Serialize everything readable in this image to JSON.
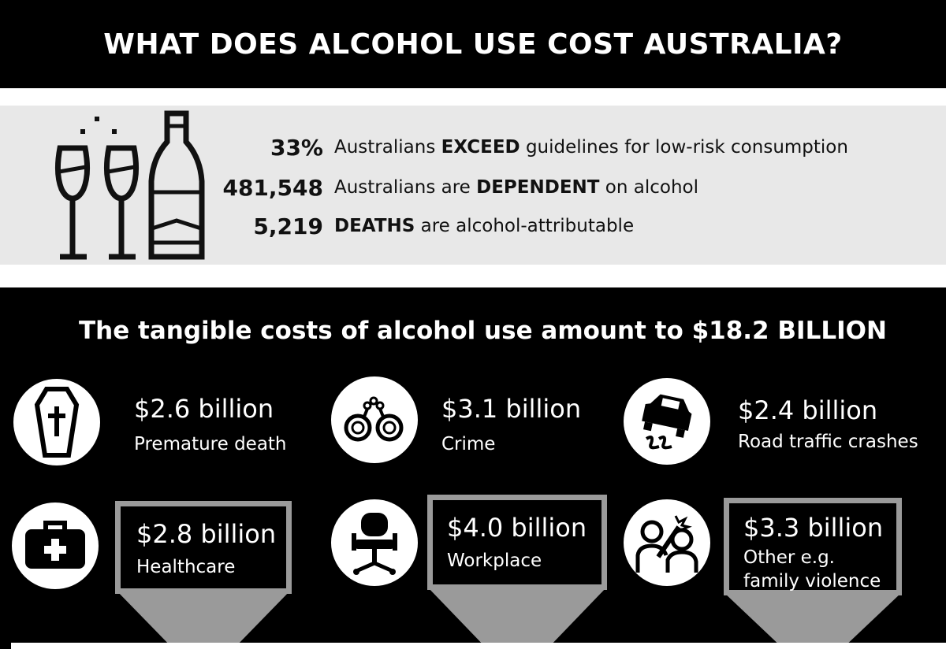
{
  "title": "WHAT DOES ALCOHOL USE COST AUSTRALIA?",
  "stats": [
    {
      "value": "33%",
      "text_pre": "Australians ",
      "text_bold": "EXCEED",
      "text_post": " guidelines for low-risk consumption"
    },
    {
      "value": "481,548",
      "text_pre": "Australians are ",
      "text_bold": "DEPENDENT",
      "text_post": " on alcohol"
    },
    {
      "value": "5,219",
      "text_pre": "",
      "text_bold": "DEATHS",
      "text_post": " are alcohol-attributable"
    }
  ],
  "headline": "The tangible costs of alcohol use amount to $18.2 BILLION",
  "costs": {
    "premature_death": {
      "amount": "$2.6 billion",
      "label": "Premature death",
      "icon": "coffin-icon"
    },
    "crime": {
      "amount": "$3.1 billion",
      "label": "Crime",
      "icon": "handcuffs-icon"
    },
    "road": {
      "amount": "$2.4 billion",
      "label": "Road traffic crashes",
      "icon": "skidding-car-icon"
    },
    "healthcare": {
      "amount": "$2.8 billion",
      "label": "Healthcare",
      "icon": "first-aid-kit-icon"
    },
    "workplace": {
      "amount": "$4.0 billion",
      "label": "Workplace",
      "icon": "office-chair-icon"
    },
    "other": {
      "amount": "$3.3 billion",
      "label_line1": "Other e.g.",
      "label_line2": "family violence",
      "icon": "violence-icon"
    }
  },
  "colors": {
    "background": "#000000",
    "panel": "#e8e8e8",
    "box_border": "#9a9a9a",
    "text_light": "#ffffff"
  }
}
